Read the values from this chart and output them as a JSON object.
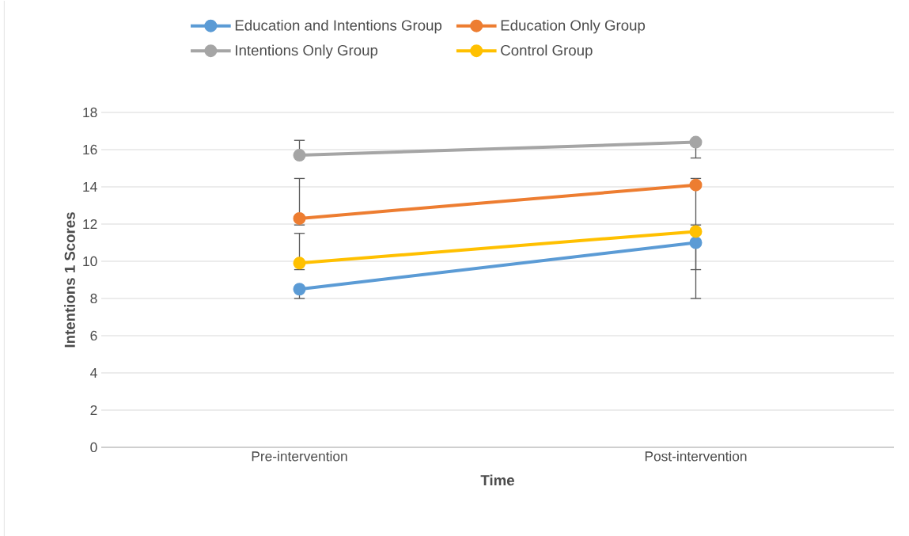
{
  "chart_data": {
    "type": "line",
    "xlabel": "Time",
    "ylabel": "Intentions 1 Scores",
    "categories": [
      "Pre-intervention",
      "Post-intervention"
    ],
    "series": [
      {
        "name": "Education and Intentions Group",
        "color": "#5b9bd5",
        "values": [
          8.5,
          11.0
        ],
        "errors": [
          [
            8.0,
            8.5
          ],
          [
            8.0,
            11.0
          ]
        ]
      },
      {
        "name": "Education Only Group",
        "color": "#ed7d31",
        "values": [
          12.3,
          14.1
        ],
        "errors": [
          [
            11.95,
            14.45
          ],
          [
            11.95,
            14.45
          ]
        ]
      },
      {
        "name": "Intentions Only Group",
        "color": "#a5a5a5",
        "values": [
          15.7,
          16.4
        ],
        "errors": [
          [
            15.7,
            16.5
          ],
          [
            15.55,
            16.4
          ]
        ]
      },
      {
        "name": "Control Group",
        "color": "#ffc000",
        "values": [
          9.9,
          11.6
        ],
        "errors": [
          [
            9.55,
            11.5
          ],
          [
            9.55,
            11.6
          ]
        ]
      }
    ],
    "ylim": [
      0,
      18
    ],
    "yticks": [
      0,
      2,
      4,
      6,
      8,
      10,
      12,
      14,
      16,
      18
    ],
    "grid": "y",
    "legend": "top",
    "marker": "circle",
    "line_style": "solid"
  }
}
